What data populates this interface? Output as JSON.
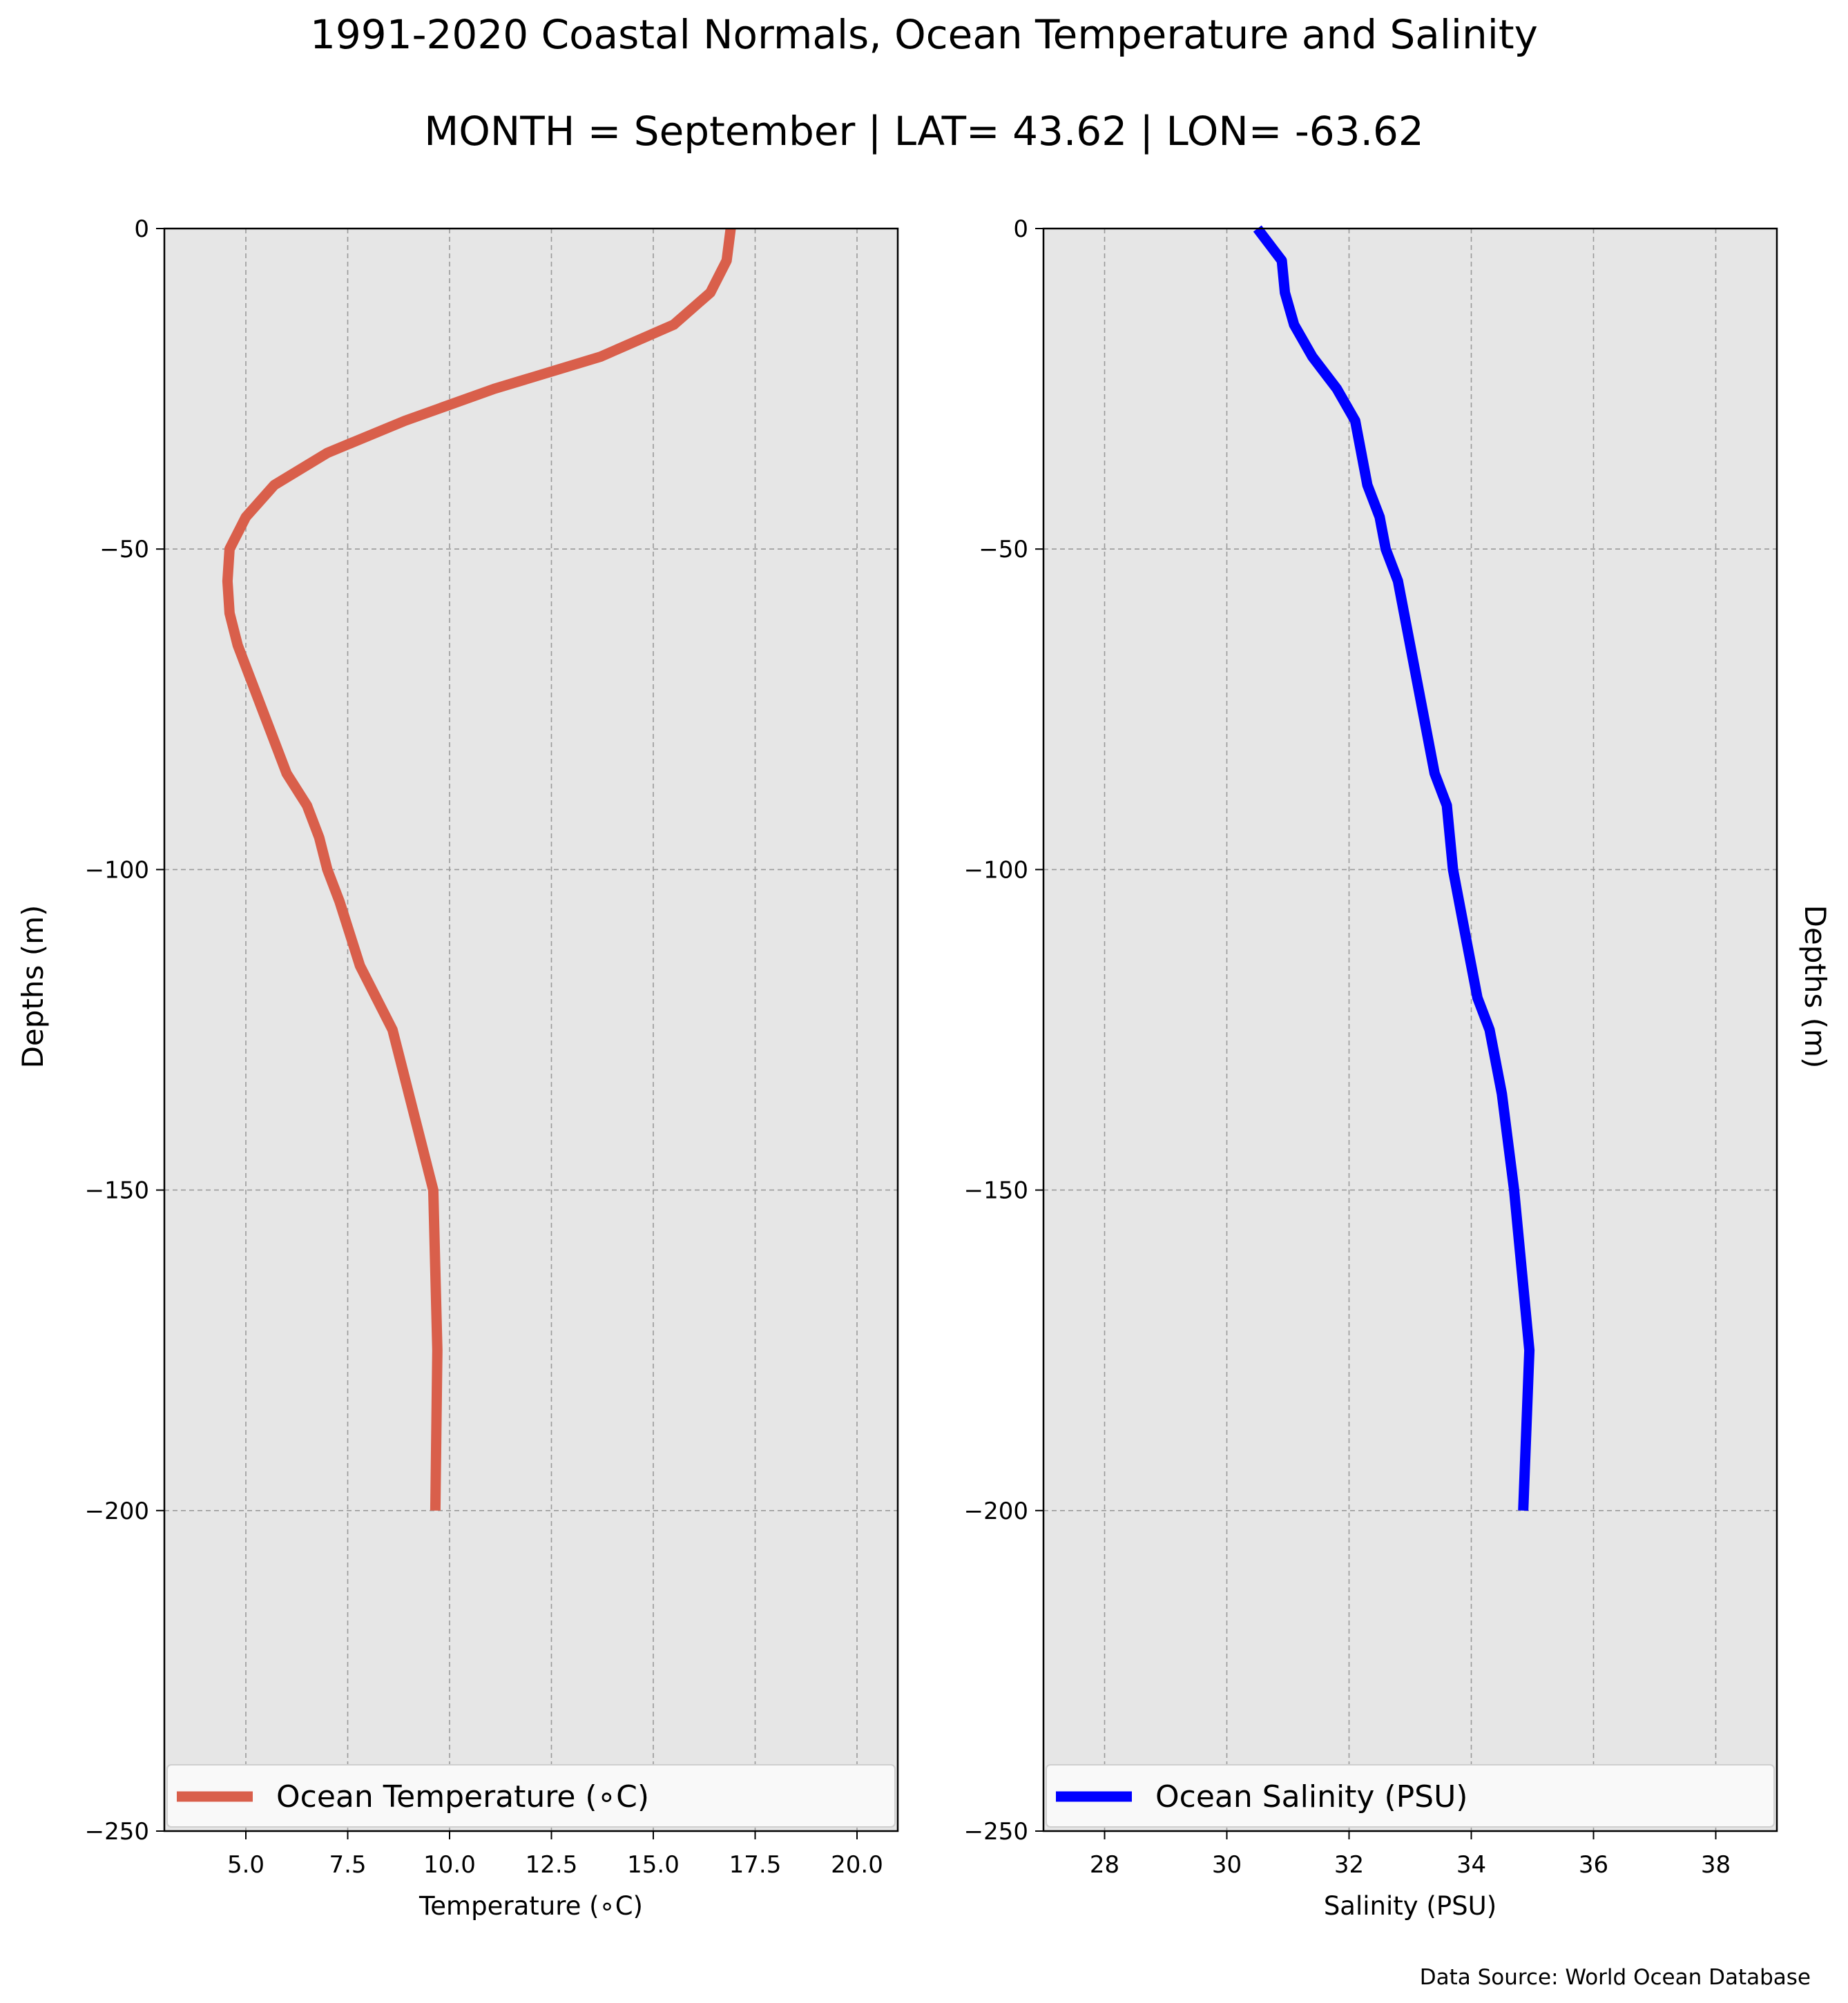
{
  "title": "1991-2020 Coastal Normals, Ocean Temperature and Salinity",
  "subtitle": "MONTH = September | LAT= 43.62 | LON= -63.62",
  "footer": "Data Source: World Ocean Database",
  "chart_data": [
    {
      "type": "line",
      "xlabel": "Temperature (∘C)",
      "ylabel": "Depths (m)",
      "xlim": [
        3,
        21
      ],
      "ylim": [
        -250,
        0
      ],
      "xticks": [
        5.0,
        7.5,
        10.0,
        12.5,
        15.0,
        17.5,
        20.0
      ],
      "xtick_labels": [
        "5.0",
        "7.5",
        "10.0",
        "12.5",
        "15.0",
        "17.5",
        "20.0"
      ],
      "yticks": [
        0,
        -50,
        -100,
        -150,
        -200,
        -250
      ],
      "ytick_labels": [
        "0",
        "−50",
        "−100",
        "−150",
        "−200",
        "−250"
      ],
      "grid": true,
      "legend_position": "bottom",
      "series": [
        {
          "name": "Ocean Temperature (∘C)",
          "color": "#d95f4b",
          "x": [
            16.9,
            16.8,
            16.4,
            15.5,
            13.7,
            11.1,
            8.9,
            7.0,
            5.7,
            5.0,
            4.6,
            4.55,
            4.6,
            4.8,
            5.4,
            6.0,
            6.5,
            6.8,
            7.0,
            7.3,
            7.8,
            8.6,
            9.0,
            9.4,
            9.6,
            9.7,
            9.65
          ],
          "y": [
            0,
            -5,
            -10,
            -15,
            -20,
            -25,
            -30,
            -35,
            -40,
            -45,
            -50,
            -55,
            -60,
            -65,
            -75,
            -85,
            -90,
            -95,
            -100,
            -105,
            -115,
            -125,
            -135,
            -145,
            -150,
            -175,
            -200
          ]
        }
      ]
    },
    {
      "type": "line",
      "xlabel": "Salinity (PSU)",
      "ylabel": "Depths (m)",
      "xlim": [
        27,
        39
      ],
      "ylim": [
        -250,
        0
      ],
      "xticks": [
        28,
        30,
        32,
        34,
        36,
        38
      ],
      "xtick_labels": [
        "28",
        "30",
        "32",
        "34",
        "36",
        "38"
      ],
      "yticks": [
        0,
        -50,
        -100,
        -150,
        -200,
        -250
      ],
      "ytick_labels": [
        "0",
        "−50",
        "−100",
        "−150",
        "−200",
        "−250"
      ],
      "grid": true,
      "legend_position": "bottom",
      "series": [
        {
          "name": "Ocean Salinity (PSU)",
          "color": "#0000ff",
          "x": [
            30.5,
            30.9,
            30.95,
            31.1,
            31.4,
            31.8,
            32.1,
            32.3,
            32.5,
            32.6,
            32.8,
            33.0,
            33.2,
            33.4,
            33.6,
            33.7,
            33.9,
            34.1,
            34.3,
            34.5,
            34.7,
            34.95,
            34.85
          ],
          "y": [
            0,
            -5,
            -10,
            -15,
            -20,
            -25,
            -30,
            -40,
            -45,
            -50,
            -55,
            -65,
            -75,
            -85,
            -90,
            -100,
            -110,
            -120,
            -125,
            -135,
            -150,
            -175,
            -200
          ]
        }
      ]
    }
  ]
}
